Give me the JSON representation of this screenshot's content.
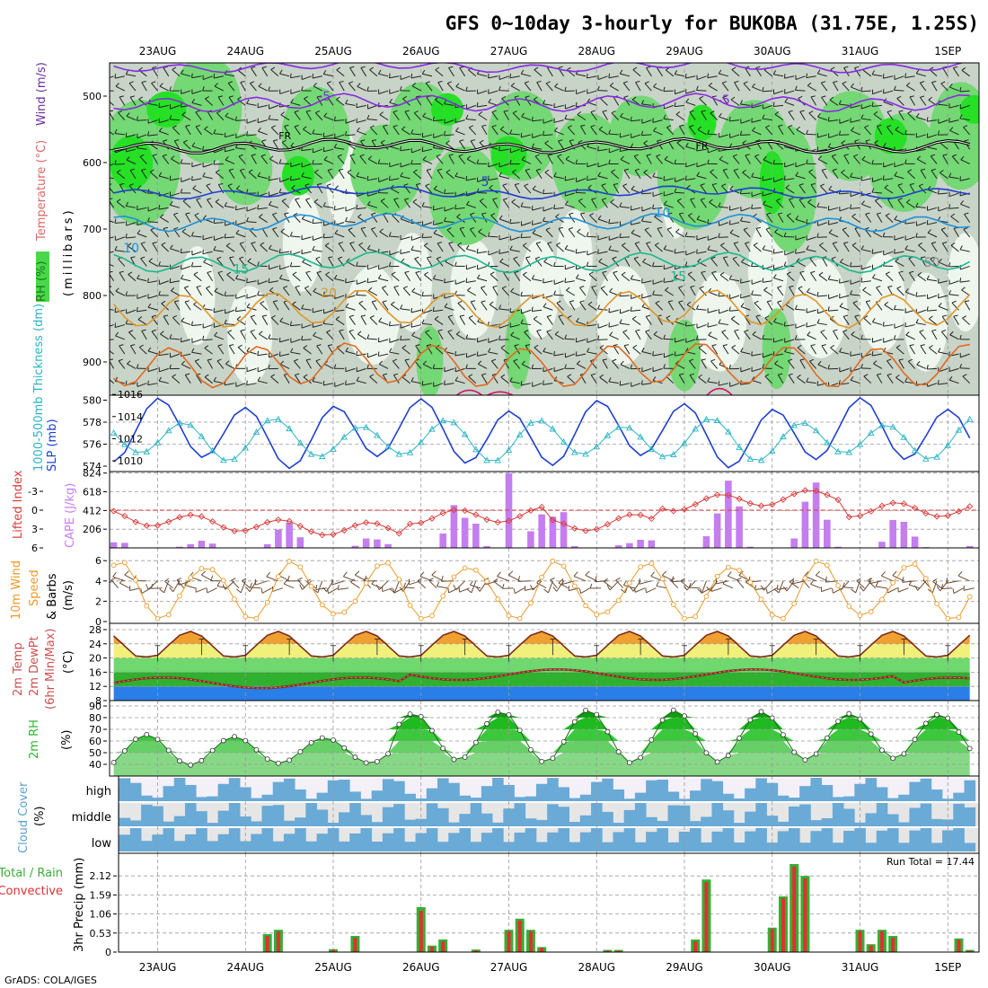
{
  "title": "GFS 0~10day 3-hourly for BUKOBA (31.75E, 1.25S)",
  "credit": "GrADS: COLA/IGES",
  "dates": [
    "23AUG",
    "24AUG",
    "25AUG",
    "26AUG",
    "27AUG",
    "28AUG",
    "29AUG",
    "30AUG",
    "31AUG",
    "1SEP"
  ],
  "colors": {
    "rh_light": "#eef6ee",
    "rh_grey": "#c8d4c8",
    "rh_green": "#74d874",
    "rh_bright": "#26e026",
    "slp": "#1f3fcf",
    "thickness": "#2cb4c4",
    "lifted": "#d83c3c",
    "cape": "#c47ef0",
    "wind10m": "#e89a28",
    "barb": "#6b4c34",
    "rh2m": "#32b432",
    "cloud": "#6aaad6",
    "precip_total": "#34b034",
    "precip_conv": "#e03030"
  },
  "chart_data": [
    {
      "type": "heatmap",
      "name": "upper",
      "labels": [
        "RH (%)",
        "Temperature (°C)",
        "Wind (m/s)",
        "(millibars)"
      ],
      "ylim": [
        950,
        450
      ],
      "yticks": [
        500,
        600,
        700,
        800,
        900
      ],
      "contour_labels": [
        {
          "text": "-5",
          "t": 1.9,
          "p": 507
        },
        {
          "text": "-5",
          "t": 6.45,
          "p": 512
        },
        {
          "text": "FR",
          "t": 1.45,
          "p": 565
        },
        {
          "text": "FR",
          "t": 6.2,
          "p": 580
        },
        {
          "text": "5",
          "t": 3.73,
          "p": 635
        },
        {
          "text": "10",
          "t": 5.75,
          "p": 682
        },
        {
          "text": "10",
          "t": -0.3,
          "p": 735
        },
        {
          "text": "15",
          "t": 0.95,
          "p": 767
        },
        {
          "text": "15",
          "t": 5.93,
          "p": 778
        },
        {
          "text": "20",
          "t": 1.95,
          "p": 803
        },
        {
          "text": "50",
          "t": 8.82,
          "p": 757
        }
      ]
    },
    {
      "type": "line",
      "name": "slp-thickness",
      "labels": [
        "1000-500mb Thickness (dm)",
        "SLP (mb)"
      ],
      "y_left": [
        574,
        580
      ],
      "y_left_ticks": [
        574,
        576,
        578,
        580
      ],
      "y_right": [
        1009,
        1016
      ],
      "y_right_ticks": [
        1010,
        1012,
        1014,
        1016
      ]
    },
    {
      "type": "bar",
      "name": "cape-li",
      "labels": [
        "Lifted Index",
        "CAPE (J/kg)"
      ],
      "li_ticks": [
        6,
        3,
        0,
        -3
      ],
      "li_tick_labels": [
        "6",
        "3",
        "0",
        "-3"
      ],
      "cape_ticks": [
        206,
        412,
        618,
        824
      ],
      "cape_peak_day": 4.05,
      "cape_peak": 824
    },
    {
      "type": "line",
      "name": "wind10m",
      "labels": [
        "10m Wind",
        "Speed",
        "& Barbs",
        "(m/s)"
      ],
      "ylim": [
        0,
        7
      ],
      "yticks": [
        0,
        2,
        4,
        6
      ]
    },
    {
      "type": "area",
      "name": "temp2m",
      "labels": [
        "2m Temp",
        "2m DewPt",
        "(6hr Min/Max)",
        "(°C)"
      ],
      "ylim": [
        8,
        30
      ],
      "yticks": [
        8,
        12,
        16,
        20,
        24,
        28
      ]
    },
    {
      "type": "area",
      "name": "rh2m",
      "labels": [
        "2m RH",
        "(%)"
      ],
      "ylim": [
        30,
        92
      ],
      "yticks": [
        40,
        50,
        60,
        70,
        80,
        90
      ]
    },
    {
      "type": "bar",
      "name": "cloud",
      "labels": [
        "Cloud Cover",
        "(%)"
      ],
      "levels": [
        "high",
        "middle",
        "low"
      ]
    },
    {
      "type": "bar",
      "name": "precip",
      "labels": [
        "Total / Rain",
        "Convective",
        "3hr Precip (mm)"
      ],
      "ylim": [
        0,
        2.45
      ],
      "yticks": [
        0,
        0.53,
        1.06,
        1.59,
        2.12
      ],
      "ytick_labels": [
        "0",
        "0.53",
        "1.06",
        "1.59",
        "2.12"
      ],
      "run_total_label": "Run Total = 17.44",
      "bars": [
        {
          "t": 1.25,
          "total": 0.5,
          "conv": 0.45
        },
        {
          "t": 1.375,
          "total": 0.62,
          "conv": 0.58
        },
        {
          "t": 2.0,
          "total": 0.08,
          "conv": 0.06
        },
        {
          "t": 2.25,
          "total": 0.45,
          "conv": 0.4
        },
        {
          "t": 3.0,
          "total": 1.25,
          "conv": 1.15
        },
        {
          "t": 3.125,
          "total": 0.18,
          "conv": 0.15
        },
        {
          "t": 3.25,
          "total": 0.35,
          "conv": 0.3
        },
        {
          "t": 3.625,
          "total": 0.07,
          "conv": 0.05
        },
        {
          "t": 4.0,
          "total": 0.62,
          "conv": 0.58
        },
        {
          "t": 4.125,
          "total": 0.93,
          "conv": 0.88
        },
        {
          "t": 4.25,
          "total": 0.62,
          "conv": 0.58
        },
        {
          "t": 4.375,
          "total": 0.14,
          "conv": 0.12
        },
        {
          "t": 5.125,
          "total": 0.06,
          "conv": 0.04
        },
        {
          "t": 5.25,
          "total": 0.06,
          "conv": 0.04
        },
        {
          "t": 6.125,
          "total": 0.35,
          "conv": 0.3
        },
        {
          "t": 6.25,
          "total": 2.02,
          "conv": 1.95
        },
        {
          "t": 7.0,
          "total": 0.68,
          "conv": 0.64
        },
        {
          "t": 7.125,
          "total": 1.55,
          "conv": 1.5
        },
        {
          "t": 7.25,
          "total": 2.45,
          "conv": 2.38
        },
        {
          "t": 7.375,
          "total": 2.12,
          "conv": 2.05
        },
        {
          "t": 8.0,
          "total": 0.62,
          "conv": 0.58
        },
        {
          "t": 8.125,
          "total": 0.22,
          "conv": 0.18
        },
        {
          "t": 8.25,
          "total": 0.62,
          "conv": 0.58
        },
        {
          "t": 8.375,
          "total": 0.45,
          "conv": 0.4
        },
        {
          "t": 9.125,
          "total": 0.38,
          "conv": 0.34
        },
        {
          "t": 9.25,
          "total": 0.06,
          "conv": 0.04
        }
      ]
    }
  ]
}
